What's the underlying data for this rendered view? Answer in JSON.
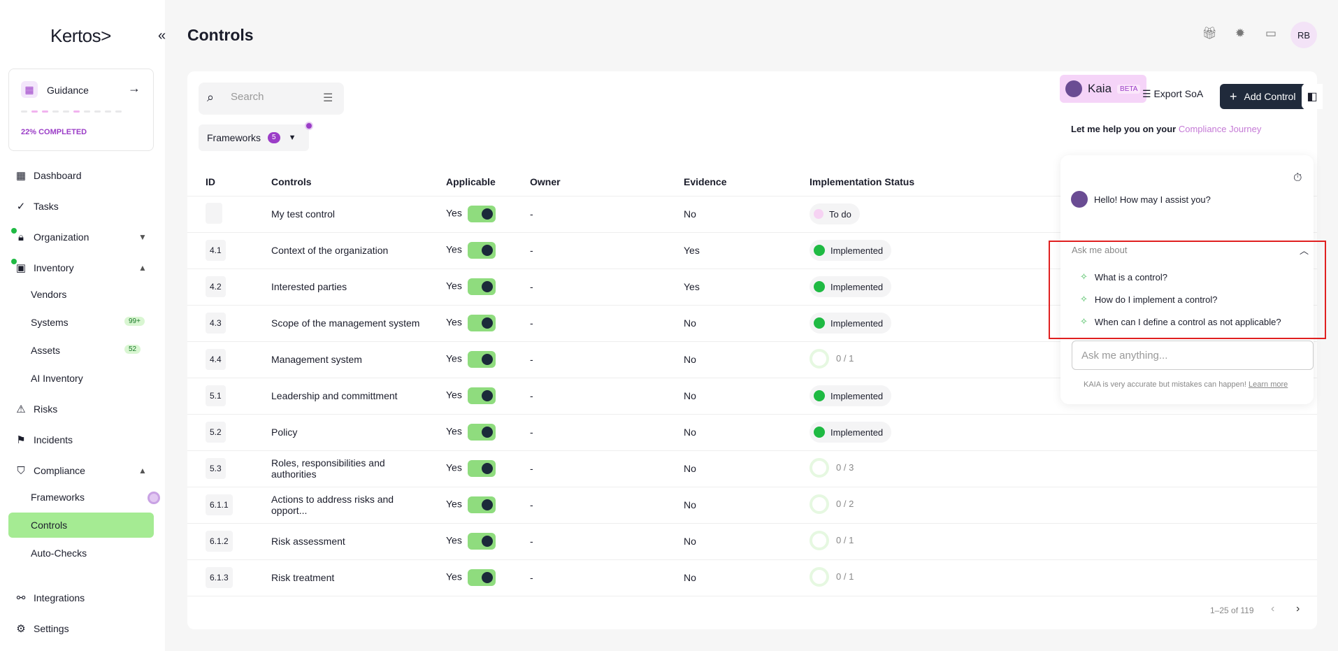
{
  "brand": {
    "logo": "Kertos>"
  },
  "guidance": {
    "title": "Guidance",
    "progress_label": "22% COMPLETED",
    "progress": 0.22,
    "steps_done": [
      1,
      2,
      5
    ]
  },
  "nav": {
    "dashboard": "Dashboard",
    "tasks": "Tasks",
    "organization": "Organization",
    "inventory": "Inventory",
    "vendors": "Vendors",
    "systems": "Systems",
    "systems_badge": "99+",
    "assets": "Assets",
    "assets_badge": "52",
    "ai_inventory": "AI Inventory",
    "risks": "Risks",
    "incidents": "Incidents",
    "compliance": "Compliance",
    "frameworks": "Frameworks",
    "controls": "Controls",
    "auto_checks": "Auto-Checks",
    "integrations": "Integrations",
    "settings": "Settings"
  },
  "header": {
    "title": "Controls",
    "avatar": "RB"
  },
  "toolbar": {
    "search_placeholder": "Search",
    "frameworks_label": "Frameworks",
    "frameworks_count": "5",
    "export_label": "Export SoA",
    "add_label": "Add Control"
  },
  "table": {
    "columns": [
      "ID",
      "Controls",
      "Applicable",
      "Owner",
      "Evidence",
      "Implementation Status"
    ],
    "rows": [
      {
        "id": "",
        "control": "My test control",
        "applicable": "Yes",
        "owner": "-",
        "evidence": "No",
        "status_type": "todo",
        "status": "To do"
      },
      {
        "id": "4.1",
        "control": "Context of the organization",
        "applicable": "Yes",
        "owner": "-",
        "evidence": "Yes",
        "status_type": "impl",
        "status": "Implemented"
      },
      {
        "id": "4.2",
        "control": "Interested parties",
        "applicable": "Yes",
        "owner": "-",
        "evidence": "Yes",
        "status_type": "impl",
        "status": "Implemented"
      },
      {
        "id": "4.3",
        "control": "Scope of the management system",
        "applicable": "Yes",
        "owner": "-",
        "evidence": "No",
        "status_type": "impl",
        "status": "Implemented"
      },
      {
        "id": "4.4",
        "control": "Management system",
        "applicable": "Yes",
        "owner": "-",
        "evidence": "No",
        "status_type": "prog",
        "status": "0 / 1"
      },
      {
        "id": "5.1",
        "control": "Leadership and committment",
        "applicable": "Yes",
        "owner": "-",
        "evidence": "No",
        "status_type": "impl",
        "status": "Implemented"
      },
      {
        "id": "5.2",
        "control": "Policy",
        "applicable": "Yes",
        "owner": "-",
        "evidence": "No",
        "status_type": "impl",
        "status": "Implemented"
      },
      {
        "id": "5.3",
        "control": "Roles, responsibilities and authorities",
        "applicable": "Yes",
        "owner": "-",
        "evidence": "No",
        "status_type": "prog",
        "status": "0 / 3"
      },
      {
        "id": "6.1.1",
        "control": "Actions to address risks and opport...",
        "applicable": "Yes",
        "owner": "-",
        "evidence": "No",
        "status_type": "prog",
        "status": "0 / 2"
      },
      {
        "id": "6.1.2",
        "control": "Risk assessment",
        "applicable": "Yes",
        "owner": "-",
        "evidence": "No",
        "status_type": "prog",
        "status": "0 / 1"
      },
      {
        "id": "6.1.3",
        "control": "Risk treatment",
        "applicable": "Yes",
        "owner": "-",
        "evidence": "No",
        "status_type": "prog",
        "status": "0 / 1"
      }
    ]
  },
  "pagination": {
    "label": "1–25 of 119"
  },
  "kaia": {
    "name": "Kaia",
    "beta": "BETA",
    "help_text": "Let me help you on your ",
    "help_link": "Compliance Journey",
    "greeting": "Hello! How may I assist you?",
    "ask_about": "Ask me about",
    "suggestions": [
      "What is a control?",
      "How do I implement a control?",
      "When can I define a control as not applicable?"
    ],
    "input_placeholder": "Ask me anything...",
    "disclaimer": "KAIA is very accurate but mistakes can happen! ",
    "learn_more": "Learn more"
  },
  "colors": {
    "accent": "#a5eb93",
    "brand_purple": "#9b3dc7",
    "primary_button": "#202a3b",
    "highlight": "#e02020"
  }
}
